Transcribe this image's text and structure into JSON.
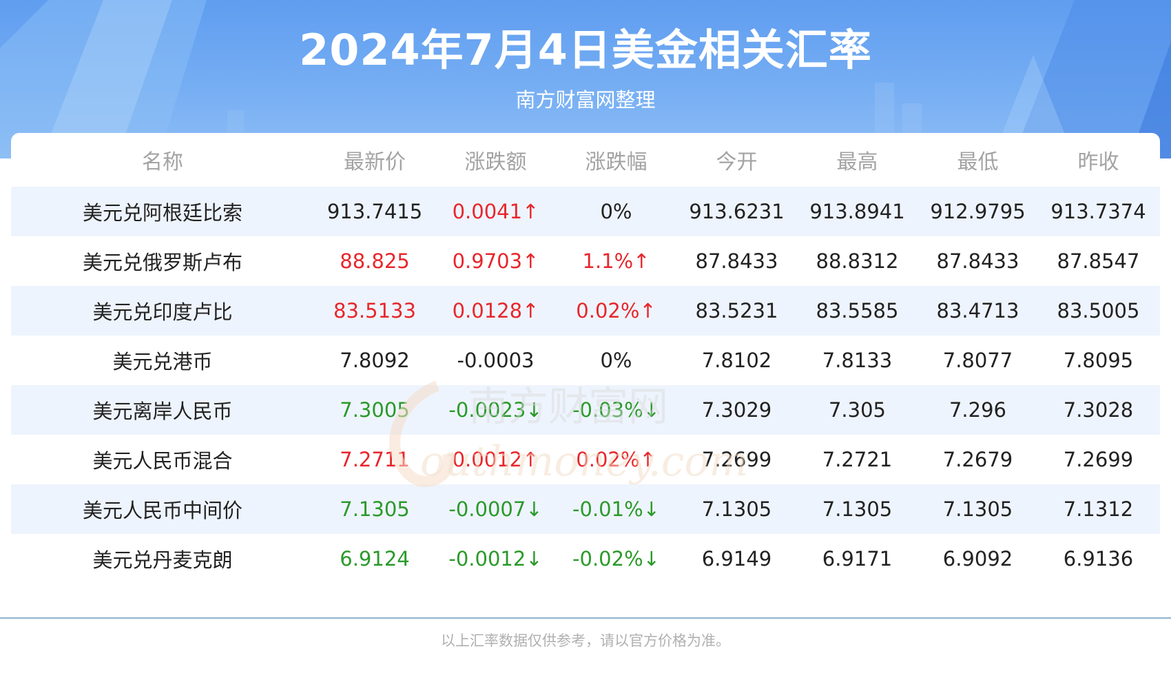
{
  "header": {
    "title": "2024年7月4日美金相关汇率",
    "subtitle": "南方财富网整理"
  },
  "columns": [
    "名称",
    "最新价",
    "涨跌额",
    "涨跌幅",
    "今开",
    "最高",
    "最低",
    "昨收"
  ],
  "rows": [
    {
      "name": "美元兑阿根廷比索",
      "latest": "913.7415",
      "latest_dir": "neutral",
      "change": "0.0041↑",
      "change_dir": "up",
      "pct": "0%",
      "pct_dir": "neutral",
      "open": "913.6231",
      "high": "913.8941",
      "low": "912.9795",
      "prev": "913.7374"
    },
    {
      "name": "美元兑俄罗斯卢布",
      "latest": "88.825",
      "latest_dir": "up",
      "change": "0.9703↑",
      "change_dir": "up",
      "pct": "1.1%↑",
      "pct_dir": "up",
      "open": "87.8433",
      "high": "88.8312",
      "low": "87.8433",
      "prev": "87.8547"
    },
    {
      "name": "美元兑印度卢比",
      "latest": "83.5133",
      "latest_dir": "up",
      "change": "0.0128↑",
      "change_dir": "up",
      "pct": "0.02%↑",
      "pct_dir": "up",
      "open": "83.5231",
      "high": "83.5585",
      "low": "83.4713",
      "prev": "83.5005"
    },
    {
      "name": "美元兑港币",
      "latest": "7.8092",
      "latest_dir": "neutral",
      "change": "-0.0003",
      "change_dir": "neutral",
      "pct": "0%",
      "pct_dir": "neutral",
      "open": "7.8102",
      "high": "7.8133",
      "low": "7.8077",
      "prev": "7.8095"
    },
    {
      "name": "美元离岸人民币",
      "latest": "7.3005",
      "latest_dir": "down",
      "change": "-0.0023↓",
      "change_dir": "down",
      "pct": "-0.03%↓",
      "pct_dir": "down",
      "open": "7.3029",
      "high": "7.305",
      "low": "7.296",
      "prev": "7.3028"
    },
    {
      "name": "美元人民币混合",
      "latest": "7.2711",
      "latest_dir": "up",
      "change": "0.0012↑",
      "change_dir": "up",
      "pct": "0.02%↑",
      "pct_dir": "up",
      "open": "7.2699",
      "high": "7.2721",
      "low": "7.2679",
      "prev": "7.2699"
    },
    {
      "name": "美元人民币中间价",
      "latest": "7.1305",
      "latest_dir": "down",
      "change": "-0.0007↓",
      "change_dir": "down",
      "pct": "-0.01%↓",
      "pct_dir": "down",
      "open": "7.1305",
      "high": "7.1305",
      "low": "7.1305",
      "prev": "7.1312"
    },
    {
      "name": "美元兑丹麦克朗",
      "latest": "6.9124",
      "latest_dir": "down",
      "change": "-0.0012↓",
      "change_dir": "down",
      "pct": "-0.02%↓",
      "pct_dir": "down",
      "open": "6.9149",
      "high": "6.9171",
      "low": "6.9092",
      "prev": "6.9136"
    }
  ],
  "watermark": {
    "line1": "南方财富网",
    "line2": "outhmoney.com"
  },
  "footer": "以上汇率数据仅供参考，请以官方价格为准。",
  "colors": {
    "up": "#e8262b",
    "down": "#2a9a2a",
    "header_blue": "#5f9df0",
    "row_alt": "#eef4fd"
  }
}
